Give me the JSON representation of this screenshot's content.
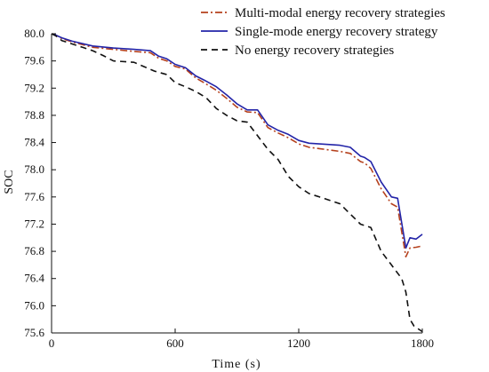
{
  "chart_data": {
    "type": "line",
    "xlabel": "Time (s)",
    "ylabel": "SOC",
    "xlim": [
      0,
      1800
    ],
    "ylim": [
      75.6,
      80.0
    ],
    "xticks": [
      0,
      600,
      1200,
      1800
    ],
    "yticks": [
      80.0,
      79.6,
      79.2,
      78.8,
      78.4,
      78.0,
      77.6,
      77.2,
      76.8,
      76.4,
      76.0,
      75.6
    ],
    "grid": false,
    "legend_position": "top-right",
    "series": [
      {
        "name": "Multi-modal energy recovery strategies",
        "color": "#b5411d",
        "dash": "dash-dot",
        "x": [
          0,
          20,
          50,
          100,
          200,
          300,
          400,
          480,
          520,
          560,
          600,
          650,
          700,
          740,
          800,
          850,
          900,
          950,
          1000,
          1050,
          1100,
          1150,
          1200,
          1250,
          1300,
          1350,
          1400,
          1450,
          1500,
          1520,
          1550,
          1600,
          1650,
          1680,
          1720,
          1740,
          1770,
          1800
        ],
        "y": [
          80.0,
          79.98,
          79.93,
          79.88,
          79.8,
          79.77,
          79.74,
          79.72,
          79.64,
          79.6,
          79.52,
          79.48,
          79.35,
          79.28,
          79.17,
          79.05,
          78.92,
          78.85,
          78.84,
          78.62,
          78.54,
          78.47,
          78.38,
          78.33,
          78.31,
          78.29,
          78.27,
          78.24,
          78.12,
          78.1,
          78.02,
          77.72,
          77.5,
          77.45,
          76.72,
          76.85,
          76.86,
          76.88
        ]
      },
      {
        "name": "Single-mode energy recovery strategy",
        "color": "#2324a8",
        "dash": "solid",
        "x": [
          0,
          20,
          50,
          100,
          200,
          300,
          400,
          480,
          520,
          560,
          600,
          650,
          700,
          740,
          800,
          850,
          900,
          950,
          1000,
          1050,
          1100,
          1150,
          1200,
          1250,
          1300,
          1350,
          1400,
          1450,
          1500,
          1520,
          1550,
          1600,
          1650,
          1680,
          1720,
          1740,
          1770,
          1800
        ],
        "y": [
          80.0,
          79.98,
          79.94,
          79.89,
          79.82,
          79.79,
          79.77,
          79.75,
          79.67,
          79.63,
          79.55,
          79.5,
          79.38,
          79.32,
          79.22,
          79.1,
          78.97,
          78.88,
          78.88,
          78.66,
          78.58,
          78.52,
          78.43,
          78.39,
          78.38,
          78.37,
          78.36,
          78.33,
          78.2,
          78.18,
          78.12,
          77.82,
          77.6,
          77.58,
          76.85,
          77.0,
          76.98,
          77.05
        ]
      },
      {
        "name": "No energy recovery strategies",
        "color": "#111111",
        "dash": "dashed",
        "x": [
          0,
          20,
          50,
          100,
          150,
          200,
          250,
          300,
          400,
          500,
          560,
          600,
          650,
          700,
          750,
          800,
          850,
          900,
          950,
          1000,
          1050,
          1100,
          1150,
          1200,
          1250,
          1300,
          1350,
          1400,
          1450,
          1500,
          1550,
          1600,
          1650,
          1700,
          1720,
          1740,
          1760,
          1800
        ],
        "y": [
          80.0,
          79.97,
          79.9,
          79.85,
          79.8,
          79.75,
          79.68,
          79.6,
          79.58,
          79.45,
          79.4,
          79.28,
          79.22,
          79.15,
          79.06,
          78.9,
          78.8,
          78.72,
          78.7,
          78.5,
          78.3,
          78.15,
          77.9,
          77.75,
          77.65,
          77.6,
          77.55,
          77.5,
          77.35,
          77.2,
          77.15,
          76.8,
          76.6,
          76.4,
          76.2,
          75.8,
          75.7,
          75.62
        ]
      }
    ]
  }
}
